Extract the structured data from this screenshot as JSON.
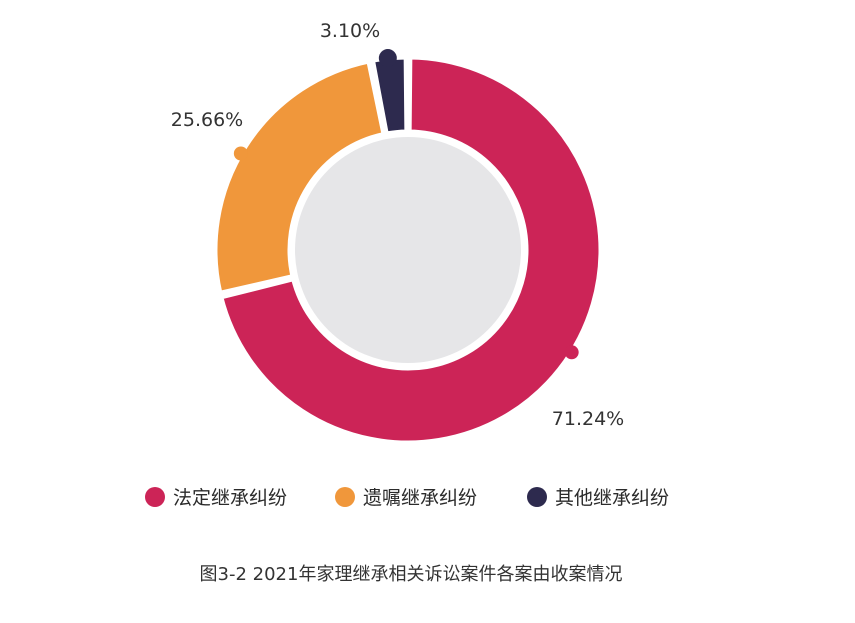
{
  "chart_data": {
    "type": "pie",
    "variant": "donut",
    "categories": [
      "法定继承纠纷",
      "遗嘱继承纠纷",
      "其他继承纠纷"
    ],
    "values": [
      71.24,
      25.66,
      3.1
    ],
    "value_labels": [
      "71.24%",
      "25.66%",
      "3.10%"
    ],
    "colors": [
      "#CC2457",
      "#F0973B",
      "#2D2A4E"
    ],
    "center_fill": "#E6E6E8",
    "legend_placement": "bottom",
    "caption": "图3-2  2021年家理继承相关诉讼案件各案由收案情况"
  }
}
